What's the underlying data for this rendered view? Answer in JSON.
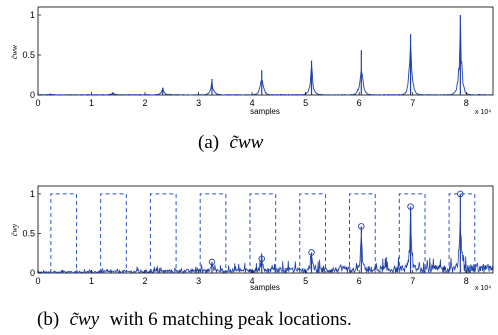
{
  "chart_data": [
    {
      "type": "line",
      "caption_prefix": "(a)",
      "caption_math": "c̃ww",
      "caption_rest": "",
      "ylabel": "c̃ww",
      "xlabel": "samples",
      "x_exponent": "x 10⁴",
      "xlim": [
        0,
        85000
      ],
      "ylim": [
        0,
        1.1
      ],
      "xticks": [
        0,
        1,
        2,
        3,
        4,
        5,
        6,
        7,
        8
      ],
      "yticks": [
        0,
        0.5,
        1
      ],
      "ytick_labels": [
        "0",
        "0.5",
        "1"
      ],
      "series_color": "#1f3fa8",
      "peaks": [
        {
          "x": 2300,
          "y": 0.01
        },
        {
          "x": 14000,
          "y": 0.03
        },
        {
          "x": 23300,
          "y": 0.09
        },
        {
          "x": 32500,
          "y": 0.2
        },
        {
          "x": 41800,
          "y": 0.31
        },
        {
          "x": 51100,
          "y": 0.43
        },
        {
          "x": 60400,
          "y": 0.56
        },
        {
          "x": 69600,
          "y": 0.76
        },
        {
          "x": 78900,
          "y": 1.0
        }
      ]
    },
    {
      "type": "line",
      "caption_prefix": "(b)",
      "caption_math": "c̃wy",
      "caption_rest": "with 6 matching peak locations.",
      "ylabel": "c̃wy",
      "xlabel": "samples",
      "x_exponent": "x 10⁴",
      "xlim": [
        0,
        85000
      ],
      "ylim": [
        0,
        1.1
      ],
      "xticks": [
        0,
        1,
        2,
        3,
        4,
        5,
        6,
        7,
        8
      ],
      "yticks": [
        0,
        0.5,
        1
      ],
      "ytick_labels": [
        "0",
        "0.5",
        "1"
      ],
      "series_color": "#1f3fa8",
      "windows": [
        {
          "x0": 2400,
          "x1": 7200
        },
        {
          "x0": 11700,
          "x1": 16500
        },
        {
          "x0": 21000,
          "x1": 25800
        },
        {
          "x0": 30300,
          "x1": 35100
        },
        {
          "x0": 39600,
          "x1": 44400
        },
        {
          "x0": 48900,
          "x1": 53700
        },
        {
          "x0": 58200,
          "x1": 63000
        },
        {
          "x0": 67500,
          "x1": 72300
        },
        {
          "x0": 76800,
          "x1": 81600
        }
      ],
      "window_height": 1.0,
      "peaks": [
        {
          "x": 32500,
          "y": 0.14
        },
        {
          "x": 41800,
          "y": 0.18
        },
        {
          "x": 51100,
          "y": 0.26
        },
        {
          "x": 60400,
          "y": 0.59
        },
        {
          "x": 69600,
          "y": 0.84
        },
        {
          "x": 78900,
          "y": 1.0
        }
      ]
    }
  ]
}
